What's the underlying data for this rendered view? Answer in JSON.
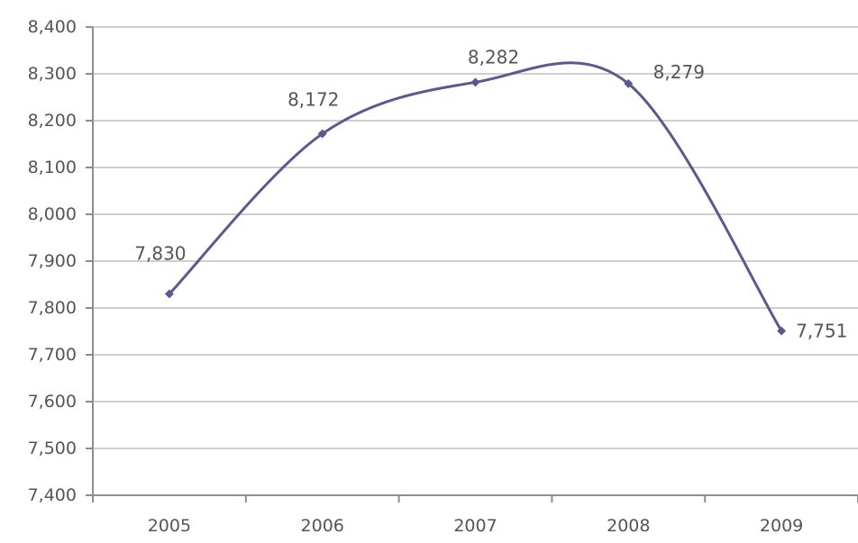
{
  "chart_data": {
    "type": "line",
    "title": "",
    "xlabel": "",
    "ylabel": "",
    "categories": [
      "2005",
      "2006",
      "2007",
      "2008",
      "2009"
    ],
    "series": [
      {
        "values": [
          7830,
          8172,
          8282,
          8279,
          7751
        ],
        "data_labels": [
          "7,830",
          "8,172",
          "8,282",
          "8,279",
          "7,751"
        ]
      }
    ],
    "ylim": [
      7400,
      8400
    ],
    "y_ticks": [
      "7,400",
      "7,500",
      "7,600",
      "7,700",
      "7,800",
      "7,900",
      "8,000",
      "8,100",
      "8,200",
      "8,300",
      "8,400"
    ],
    "grid": true,
    "legend": "none",
    "smooth": true,
    "colors": {
      "series_line": "#5a5a8e",
      "marker": "#5a5a8e",
      "gridline": "#cfcfcf",
      "axis": "#8e8e8e",
      "text": "#555555"
    }
  }
}
